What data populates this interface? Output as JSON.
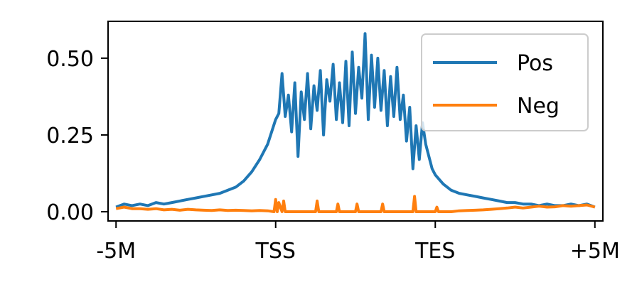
{
  "chart_data": {
    "type": "line",
    "title": "",
    "xlabel": "",
    "ylabel": "",
    "xlim": [
      -0.05,
      3.05
    ],
    "ylim": [
      -0.03,
      0.62
    ],
    "xticks": [
      {
        "value": 0,
        "label": "-5M"
      },
      {
        "value": 1,
        "label": "TSS"
      },
      {
        "value": 2,
        "label": "TES"
      },
      {
        "value": 3,
        "label": "+5M"
      }
    ],
    "yticks": [
      {
        "value": 0.0,
        "label": "0.00"
      },
      {
        "value": 0.25,
        "label": "0.25"
      },
      {
        "value": 0.5,
        "label": "0.50"
      }
    ],
    "grid": false,
    "legend": {
      "position": "top-right"
    },
    "series": [
      {
        "name": "Pos",
        "color": "#1f77b4",
        "x": [
          0.0,
          0.05,
          0.1,
          0.15,
          0.2,
          0.25,
          0.3,
          0.35,
          0.4,
          0.45,
          0.5,
          0.55,
          0.6,
          0.65,
          0.7,
          0.75,
          0.8,
          0.85,
          0.9,
          0.95,
          1.0,
          1.02,
          1.04,
          1.06,
          1.08,
          1.1,
          1.12,
          1.14,
          1.16,
          1.18,
          1.2,
          1.22,
          1.24,
          1.26,
          1.28,
          1.3,
          1.32,
          1.34,
          1.36,
          1.38,
          1.4,
          1.42,
          1.44,
          1.46,
          1.48,
          1.5,
          1.52,
          1.54,
          1.56,
          1.58,
          1.6,
          1.62,
          1.64,
          1.66,
          1.68,
          1.7,
          1.72,
          1.74,
          1.76,
          1.78,
          1.8,
          1.82,
          1.84,
          1.86,
          1.88,
          1.9,
          1.92,
          1.94,
          1.96,
          1.98,
          2.0,
          2.05,
          2.1,
          2.15,
          2.2,
          2.25,
          2.3,
          2.35,
          2.4,
          2.45,
          2.5,
          2.55,
          2.6,
          2.65,
          2.7,
          2.75,
          2.8,
          2.85,
          2.9,
          2.95,
          3.0
        ],
        "values": [
          0.015,
          0.025,
          0.02,
          0.025,
          0.02,
          0.03,
          0.025,
          0.03,
          0.035,
          0.04,
          0.045,
          0.05,
          0.055,
          0.06,
          0.07,
          0.08,
          0.1,
          0.13,
          0.17,
          0.22,
          0.3,
          0.32,
          0.45,
          0.31,
          0.38,
          0.26,
          0.42,
          0.18,
          0.39,
          0.3,
          0.45,
          0.27,
          0.41,
          0.33,
          0.46,
          0.25,
          0.43,
          0.36,
          0.48,
          0.3,
          0.42,
          0.29,
          0.49,
          0.28,
          0.52,
          0.32,
          0.47,
          0.37,
          0.58,
          0.3,
          0.51,
          0.34,
          0.5,
          0.33,
          0.46,
          0.28,
          0.44,
          0.31,
          0.47,
          0.3,
          0.38,
          0.23,
          0.34,
          0.14,
          0.28,
          0.17,
          0.29,
          0.22,
          0.18,
          0.14,
          0.12,
          0.09,
          0.07,
          0.06,
          0.055,
          0.05,
          0.045,
          0.04,
          0.035,
          0.03,
          0.03,
          0.025,
          0.025,
          0.02,
          0.025,
          0.02,
          0.02,
          0.025,
          0.02,
          0.025,
          0.015
        ]
      },
      {
        "name": "Neg",
        "color": "#ff7f0e",
        "x": [
          0.0,
          0.05,
          0.1,
          0.15,
          0.2,
          0.25,
          0.3,
          0.35,
          0.4,
          0.45,
          0.5,
          0.55,
          0.6,
          0.65,
          0.7,
          0.75,
          0.8,
          0.85,
          0.9,
          0.95,
          0.99,
          1.0,
          1.01,
          1.02,
          1.04,
          1.05,
          1.06,
          1.1,
          1.2,
          1.25,
          1.26,
          1.27,
          1.3,
          1.38,
          1.39,
          1.4,
          1.5,
          1.51,
          1.52,
          1.6,
          1.66,
          1.67,
          1.68,
          1.8,
          1.86,
          1.87,
          1.88,
          2.0,
          2.01,
          2.02,
          2.1,
          2.15,
          2.2,
          2.25,
          2.3,
          2.35,
          2.4,
          2.45,
          2.5,
          2.55,
          2.6,
          2.65,
          2.7,
          2.75,
          2.8,
          2.85,
          2.9,
          2.95,
          3.0
        ],
        "values": [
          0.01,
          0.015,
          0.01,
          0.01,
          0.008,
          0.01,
          0.006,
          0.008,
          0.005,
          0.008,
          0.006,
          0.005,
          0.004,
          0.006,
          0.004,
          0.005,
          0.004,
          0.003,
          0.004,
          0.003,
          0.0,
          0.04,
          0.0,
          0.03,
          0.0,
          0.035,
          0.0,
          0.0,
          0.0,
          0.0,
          0.035,
          0.0,
          0.0,
          0.0,
          0.025,
          0.0,
          0.0,
          0.025,
          0.0,
          0.0,
          0.0,
          0.025,
          0.0,
          0.0,
          0.0,
          0.05,
          0.0,
          0.0,
          0.015,
          0.0,
          0.0,
          0.003,
          0.004,
          0.005,
          0.006,
          0.008,
          0.01,
          0.012,
          0.015,
          0.012,
          0.015,
          0.018,
          0.015,
          0.016,
          0.02,
          0.018,
          0.02,
          0.022,
          0.015
        ]
      }
    ]
  }
}
